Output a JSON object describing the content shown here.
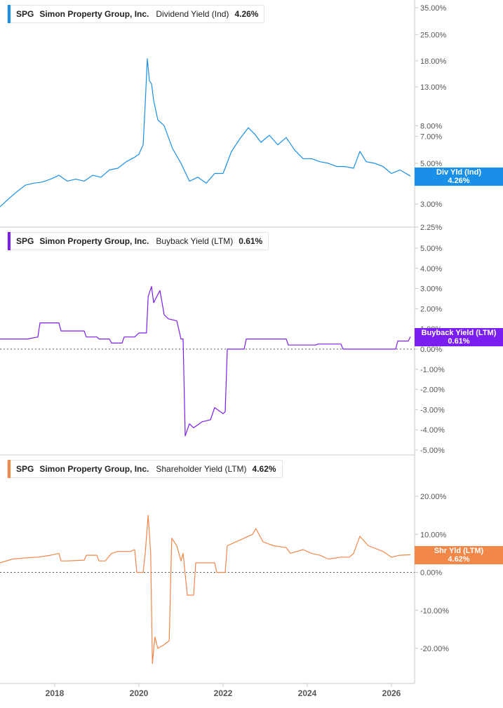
{
  "colors": {
    "dividend": "#1a8fe8",
    "buyback": "#7b1ef0",
    "shareholder": "#f2874a",
    "axis": "#c8c8c8",
    "tick_text": "#555555",
    "zero_line": "#555555"
  },
  "x_axis_labels": [
    "2018",
    "2020",
    "2022",
    "2024",
    "2026"
  ],
  "chart_data": [
    {
      "type": "line",
      "ticker": "SPG",
      "company": "Simon Property Group, Inc.",
      "metric": "Dividend Yield (Ind)",
      "value_label": "4.26%",
      "end_label": [
        "Div Yld (Ind)",
        "4.26%"
      ],
      "y_scale": "log",
      "y_ticks": [
        "35.00%",
        "25.00%",
        "18.00%",
        "13.00%",
        "8.00%",
        "7.00%",
        "5.00%",
        "3.00%",
        "2.25%"
      ],
      "y_tick_values": [
        35,
        25,
        18,
        13,
        8,
        7,
        5,
        3,
        2.25
      ],
      "zero_line": false,
      "x": [
        2016.7,
        2016.9,
        2017.1,
        2017.3,
        2017.5,
        2017.7,
        2017.9,
        2018.1,
        2018.3,
        2018.5,
        2018.7,
        2018.9,
        2019.1,
        2019.3,
        2019.5,
        2019.7,
        2019.9,
        2020.0,
        2020.1,
        2020.15,
        2020.2,
        2020.25,
        2020.3,
        2020.35,
        2020.45,
        2020.6,
        2020.8,
        2021.0,
        2021.2,
        2021.4,
        2021.6,
        2021.8,
        2022.0,
        2022.2,
        2022.4,
        2022.6,
        2022.75,
        2022.9,
        2023.1,
        2023.3,
        2023.5,
        2023.7,
        2023.9,
        2024.1,
        2024.3,
        2024.5,
        2024.7,
        2024.9,
        2025.1,
        2025.25,
        2025.4,
        2025.6,
        2025.8,
        2026.0,
        2026.2,
        2026.45
      ],
      "y": [
        2.9,
        3.2,
        3.5,
        3.8,
        3.9,
        3.95,
        4.1,
        4.3,
        4.0,
        4.1,
        4.0,
        4.3,
        4.2,
        4.6,
        4.7,
        5.1,
        5.4,
        5.6,
        6.3,
        10.5,
        18.5,
        14.0,
        13.5,
        11.0,
        8.6,
        8.0,
        6.0,
        5.0,
        4.0,
        4.2,
        3.9,
        4.4,
        4.4,
        5.8,
        6.8,
        7.8,
        7.2,
        6.5,
        7.1,
        6.3,
        6.9,
        5.9,
        5.3,
        5.3,
        5.1,
        5.0,
        4.8,
        4.8,
        4.7,
        5.8,
        5.1,
        5.0,
        4.8,
        4.4,
        4.6,
        4.26
      ]
    },
    {
      "type": "line",
      "ticker": "SPG",
      "company": "Simon Property Group, Inc.",
      "metric": "Buyback Yield (LTM)",
      "value_label": "0.61%",
      "end_label": [
        "Buyback Yield (LTM)",
        "0.61%"
      ],
      "y_scale": "linear",
      "y_ticks": [
        "5.00%",
        "4.00%",
        "3.00%",
        "2.00%",
        "1.00%",
        "0.00%",
        "-1.00%",
        "-2.00%",
        "-3.00%",
        "-4.00%",
        "-5.00%"
      ],
      "y_tick_values": [
        5,
        4,
        3,
        2,
        1,
        0,
        -1,
        -2,
        -3,
        -4,
        -5
      ],
      "zero_line": true,
      "x": [
        2016.7,
        2017.3,
        2017.35,
        2017.6,
        2017.65,
        2018.1,
        2018.15,
        2018.7,
        2018.75,
        2019.0,
        2019.05,
        2019.3,
        2019.35,
        2019.6,
        2019.65,
        2019.9,
        2020.0,
        2020.18,
        2020.22,
        2020.3,
        2020.35,
        2020.45,
        2020.5,
        2020.6,
        2020.7,
        2020.9,
        2021.0,
        2021.05,
        2021.1,
        2021.2,
        2021.3,
        2021.5,
        2021.7,
        2021.8,
        2022.0,
        2022.05,
        2022.1,
        2022.5,
        2022.55,
        2023.1,
        2023.15,
        2023.5,
        2023.55,
        2024.2,
        2024.25,
        2024.8,
        2024.85,
        2025.5,
        2025.55,
        2026.1,
        2026.15,
        2026.4,
        2026.45
      ],
      "y": [
        0.5,
        0.5,
        0.5,
        0.6,
        1.3,
        1.3,
        0.9,
        0.9,
        0.6,
        0.6,
        0.5,
        0.5,
        0.3,
        0.3,
        0.6,
        0.6,
        0.8,
        0.8,
        2.6,
        3.1,
        2.3,
        2.7,
        2.9,
        1.7,
        1.5,
        1.4,
        0.5,
        0.5,
        -4.3,
        -3.7,
        -3.9,
        -3.6,
        -3.5,
        -2.9,
        -3.2,
        -3.1,
        0.0,
        0.0,
        0.5,
        0.5,
        0.5,
        0.5,
        0.2,
        0.2,
        0.25,
        0.25,
        0.0,
        0.0,
        0.0,
        0.0,
        0.4,
        0.4,
        0.61
      ]
    },
    {
      "type": "line",
      "ticker": "SPG",
      "company": "Simon Property Group, Inc.",
      "metric": "Shareholder Yield (LTM)",
      "value_label": "4.62%",
      "end_label": [
        "Shr Yld (LTM)",
        "4.62%"
      ],
      "y_scale": "linear",
      "y_ticks": [
        "20.00%",
        "10.00%",
        "0.00%",
        "-10.00%",
        "-20.00%"
      ],
      "y_tick_values": [
        20,
        10,
        0,
        -10,
        -20
      ],
      "zero_line": true,
      "x": [
        2016.7,
        2017.0,
        2017.3,
        2017.6,
        2017.9,
        2018.1,
        2018.15,
        2018.3,
        2018.7,
        2018.75,
        2019.0,
        2019.05,
        2019.2,
        2019.35,
        2019.5,
        2019.8,
        2019.9,
        2019.95,
        2020.1,
        2020.15,
        2020.22,
        2020.28,
        2020.32,
        2020.38,
        2020.45,
        2020.6,
        2020.72,
        2020.78,
        2020.9,
        2021.0,
        2021.05,
        2021.15,
        2021.3,
        2021.35,
        2021.8,
        2021.85,
        2022.05,
        2022.1,
        2022.4,
        2022.7,
        2022.78,
        2022.95,
        2023.2,
        2023.5,
        2023.6,
        2023.9,
        2024.1,
        2024.3,
        2024.5,
        2024.8,
        2025.0,
        2025.1,
        2025.25,
        2025.45,
        2025.8,
        2026.0,
        2026.2,
        2026.45
      ],
      "y": [
        2.5,
        3.5,
        3.8,
        4.0,
        4.5,
        5.0,
        3.0,
        3.0,
        3.2,
        4.5,
        4.5,
        3.0,
        3.0,
        5.0,
        5.5,
        5.5,
        6.0,
        0.0,
        0.0,
        5.0,
        15.0,
        5.0,
        -24.0,
        -17.0,
        -20.0,
        -19.0,
        -18.0,
        9.0,
        7.0,
        3.0,
        5.0,
        -6.0,
        -6.0,
        2.5,
        2.5,
        0.0,
        0.0,
        7.0,
        8.5,
        10.0,
        11.5,
        8.0,
        7.0,
        6.5,
        5.0,
        6.0,
        5.0,
        4.5,
        3.5,
        4.0,
        4.0,
        5.0,
        9.5,
        7.0,
        5.5,
        4.0,
        4.5,
        4.62
      ]
    }
  ]
}
